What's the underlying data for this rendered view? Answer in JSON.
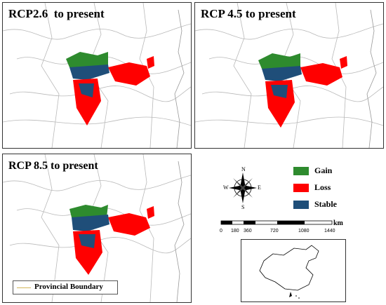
{
  "panels": [
    {
      "id": "rcp26",
      "title": "RCP2.6  to present"
    },
    {
      "id": "rcp45",
      "title": "RCP 4.5 to present"
    },
    {
      "id": "rcp85",
      "title": "RCP 8.5 to present"
    }
  ],
  "boundary_legend": {
    "label": "Provincial Boundary",
    "color": "#d2b65a"
  },
  "legend": [
    {
      "label": "Gain",
      "color": "#2e8b2e"
    },
    {
      "label": "Loss",
      "color": "#ff0000"
    },
    {
      "label": "Stable",
      "color": "#1f4e79"
    }
  ],
  "compass": {
    "n": "N",
    "s": "S",
    "e": "E",
    "w": "W"
  },
  "scale": {
    "unit": "km",
    "ticks": [
      "0",
      "180",
      "360",
      "720",
      "1080",
      "1440"
    ]
  },
  "icons": {
    "compass": "compass-rose-icon",
    "inset": "china-inset-map"
  }
}
